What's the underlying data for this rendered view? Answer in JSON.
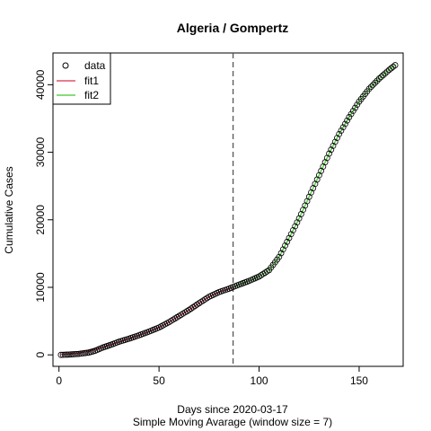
{
  "chart_data": {
    "type": "scatter",
    "title": "Algeria / Gompertz",
    "xlabel": "Days since 2020-03-17",
    "subtitle": "Simple Moving Avarage (window size = 7)",
    "ylabel": "Cumulative Cases",
    "xlim": [
      -3,
      172
    ],
    "ylim": [
      -1700,
      44700
    ],
    "x_ticks": [
      0,
      50,
      100,
      150
    ],
    "y_ticks": [
      0,
      10000,
      20000,
      30000,
      40000
    ],
    "vline": {
      "x": 87,
      "style": "dashed",
      "color": "#555555"
    },
    "legend": {
      "placement": "top-left",
      "entries": [
        {
          "label": "data",
          "symbol": "circle"
        },
        {
          "label": "fit1",
          "symbol": "line",
          "color": "#DF536B"
        },
        {
          "label": "fit2",
          "symbol": "line",
          "color": "#61D04F"
        }
      ]
    },
    "data_anchors": {
      "x": [
        1,
        5,
        10,
        15,
        18,
        22,
        26,
        30,
        35,
        40,
        45,
        50,
        55,
        60,
        65,
        70,
        75,
        80,
        85,
        87,
        90,
        95,
        100,
        105,
        110,
        115,
        120,
        125,
        130,
        135,
        140,
        145,
        150,
        155,
        160,
        165,
        168
      ],
      "y": [
        0,
        50,
        150,
        350,
        600,
        1100,
        1500,
        1950,
        2400,
        2900,
        3450,
        4050,
        4850,
        5750,
        6650,
        7650,
        8600,
        9300,
        9800,
        10050,
        10400,
        10950,
        11600,
        12550,
        14500,
        17300,
        20200,
        23400,
        26600,
        29800,
        32700,
        35200,
        37500,
        39400,
        40900,
        42200,
        42900
      ]
    },
    "series": [
      {
        "name": "data",
        "marker": "circle",
        "x_start": 1,
        "x_end": 168
      },
      {
        "name": "fit1",
        "color": "#DF536B",
        "x": [
          1,
          5,
          10,
          15,
          20,
          25,
          30,
          35,
          40,
          45,
          50,
          55,
          60,
          65,
          70,
          75,
          80,
          85,
          87
        ],
        "y": [
          60,
          150,
          300,
          560,
          980,
          1430,
          1900,
          2400,
          2900,
          3450,
          4050,
          4850,
          5750,
          6650,
          7650,
          8600,
          9300,
          9800,
          10050
        ]
      },
      {
        "name": "fit2",
        "color": "#61D04F",
        "x": [
          87,
          90,
          95,
          100,
          105,
          110,
          115,
          120,
          125,
          130,
          135,
          140,
          145,
          150,
          155,
          160,
          165,
          168
        ],
        "y": [
          10050,
          10400,
          10950,
          11600,
          12550,
          14500,
          17300,
          20200,
          23400,
          26600,
          29800,
          32700,
          35200,
          37500,
          39400,
          40900,
          42200,
          42900
        ]
      }
    ]
  }
}
